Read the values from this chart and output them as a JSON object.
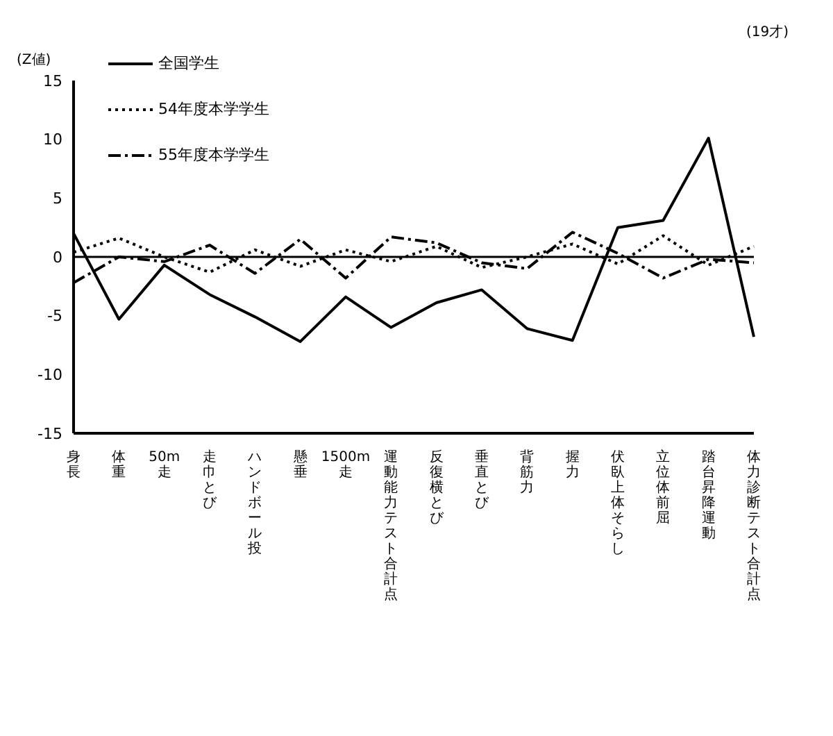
{
  "chart_data": {
    "type": "line",
    "ylabel": "(Z値)",
    "annotations": [
      "(19才)"
    ],
    "categories": [
      "身長",
      "体重",
      "50m走",
      "走巾とび",
      "ハンドボール投",
      "懸垂",
      "1500m走",
      "運動能力テスト合計点",
      "反復横とび",
      "垂直とび",
      "背筋力",
      "握力",
      "伏臥上体そらし",
      "立位体前屈",
      "踏台昇降運動",
      "体力診断テスト合計点"
    ],
    "series": [
      {
        "name": "全国学生",
        "color": "#000000",
        "line_style": "solid",
        "values": [
          2.0,
          -5.3,
          -0.7,
          -3.2,
          -5.1,
          -7.2,
          -3.4,
          -6.0,
          -3.9,
          -2.8,
          -6.1,
          -7.1,
          2.5,
          3.1,
          10.1,
          -6.8
        ]
      },
      {
        "name": "54年度本学学生",
        "color": "#000000",
        "line_style": "dotted",
        "values": [
          0.4,
          1.6,
          0.0,
          -1.3,
          0.6,
          -0.8,
          0.6,
          -0.4,
          0.9,
          -0.9,
          0.0,
          1.1,
          -0.6,
          1.8,
          -0.7,
          0.9
        ]
      },
      {
        "name": "55年度本学学生",
        "color": "#000000",
        "line_style": "dashed",
        "values": [
          -2.2,
          0.0,
          -0.4,
          1.0,
          -1.4,
          1.5,
          -1.8,
          1.7,
          1.2,
          -0.5,
          -1.0,
          2.1,
          0.3,
          -1.8,
          -0.2,
          -0.5
        ]
      }
    ],
    "ylim": [
      -15,
      15
    ],
    "yticks": [
      -15,
      -10,
      -5,
      0,
      5,
      10,
      15
    ],
    "grid": false,
    "legend": "top left",
    "marker": "none",
    "ref_lines": [
      {
        "axis": "y",
        "value": 0,
        "color": "#000000"
      }
    ]
  }
}
